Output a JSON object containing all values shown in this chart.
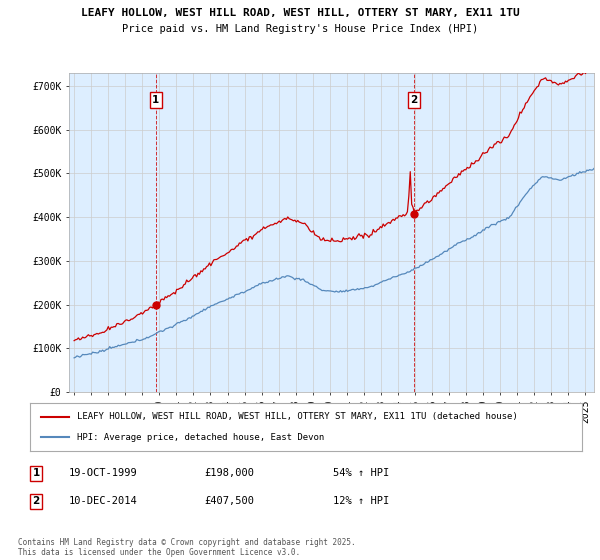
{
  "title_line1": "LEAFY HOLLOW, WEST HILL ROAD, WEST HILL, OTTERY ST MARY, EX11 1TU",
  "title_line2": "Price paid vs. HM Land Registry's House Price Index (HPI)",
  "ylim": [
    0,
    730000
  ],
  "xlim_start": 1994.7,
  "xlim_end": 2025.5,
  "yticks": [
    0,
    100000,
    200000,
    300000,
    400000,
    500000,
    600000,
    700000
  ],
  "ytick_labels": [
    "£0",
    "£100K",
    "£200K",
    "£300K",
    "£400K",
    "£500K",
    "£600K",
    "£700K"
  ],
  "xticks": [
    1995,
    1996,
    1997,
    1998,
    1999,
    2000,
    2001,
    2002,
    2003,
    2004,
    2005,
    2006,
    2007,
    2008,
    2009,
    2010,
    2011,
    2012,
    2013,
    2014,
    2015,
    2016,
    2017,
    2018,
    2019,
    2020,
    2021,
    2022,
    2023,
    2024,
    2025
  ],
  "red_line_color": "#cc0000",
  "blue_line_color": "#5588bb",
  "plot_bg_color": "#ddeeff",
  "sale1_x": 1999.79,
  "sale1_y": 198000,
  "sale1_label": "1",
  "sale2_x": 2014.94,
  "sale2_y": 407500,
  "sale2_label": "2",
  "legend_red_label": "LEAFY HOLLOW, WEST HILL ROAD, WEST HILL, OTTERY ST MARY, EX11 1TU (detached house)",
  "legend_blue_label": "HPI: Average price, detached house, East Devon",
  "annotation1_date": "19-OCT-1999",
  "annotation1_price": "£198,000",
  "annotation1_hpi": "54% ↑ HPI",
  "annotation2_date": "10-DEC-2014",
  "annotation2_price": "£407,500",
  "annotation2_hpi": "12% ↑ HPI",
  "footer": "Contains HM Land Registry data © Crown copyright and database right 2025.\nThis data is licensed under the Open Government Licence v3.0.",
  "background_color": "#ffffff",
  "grid_color": "#cccccc"
}
